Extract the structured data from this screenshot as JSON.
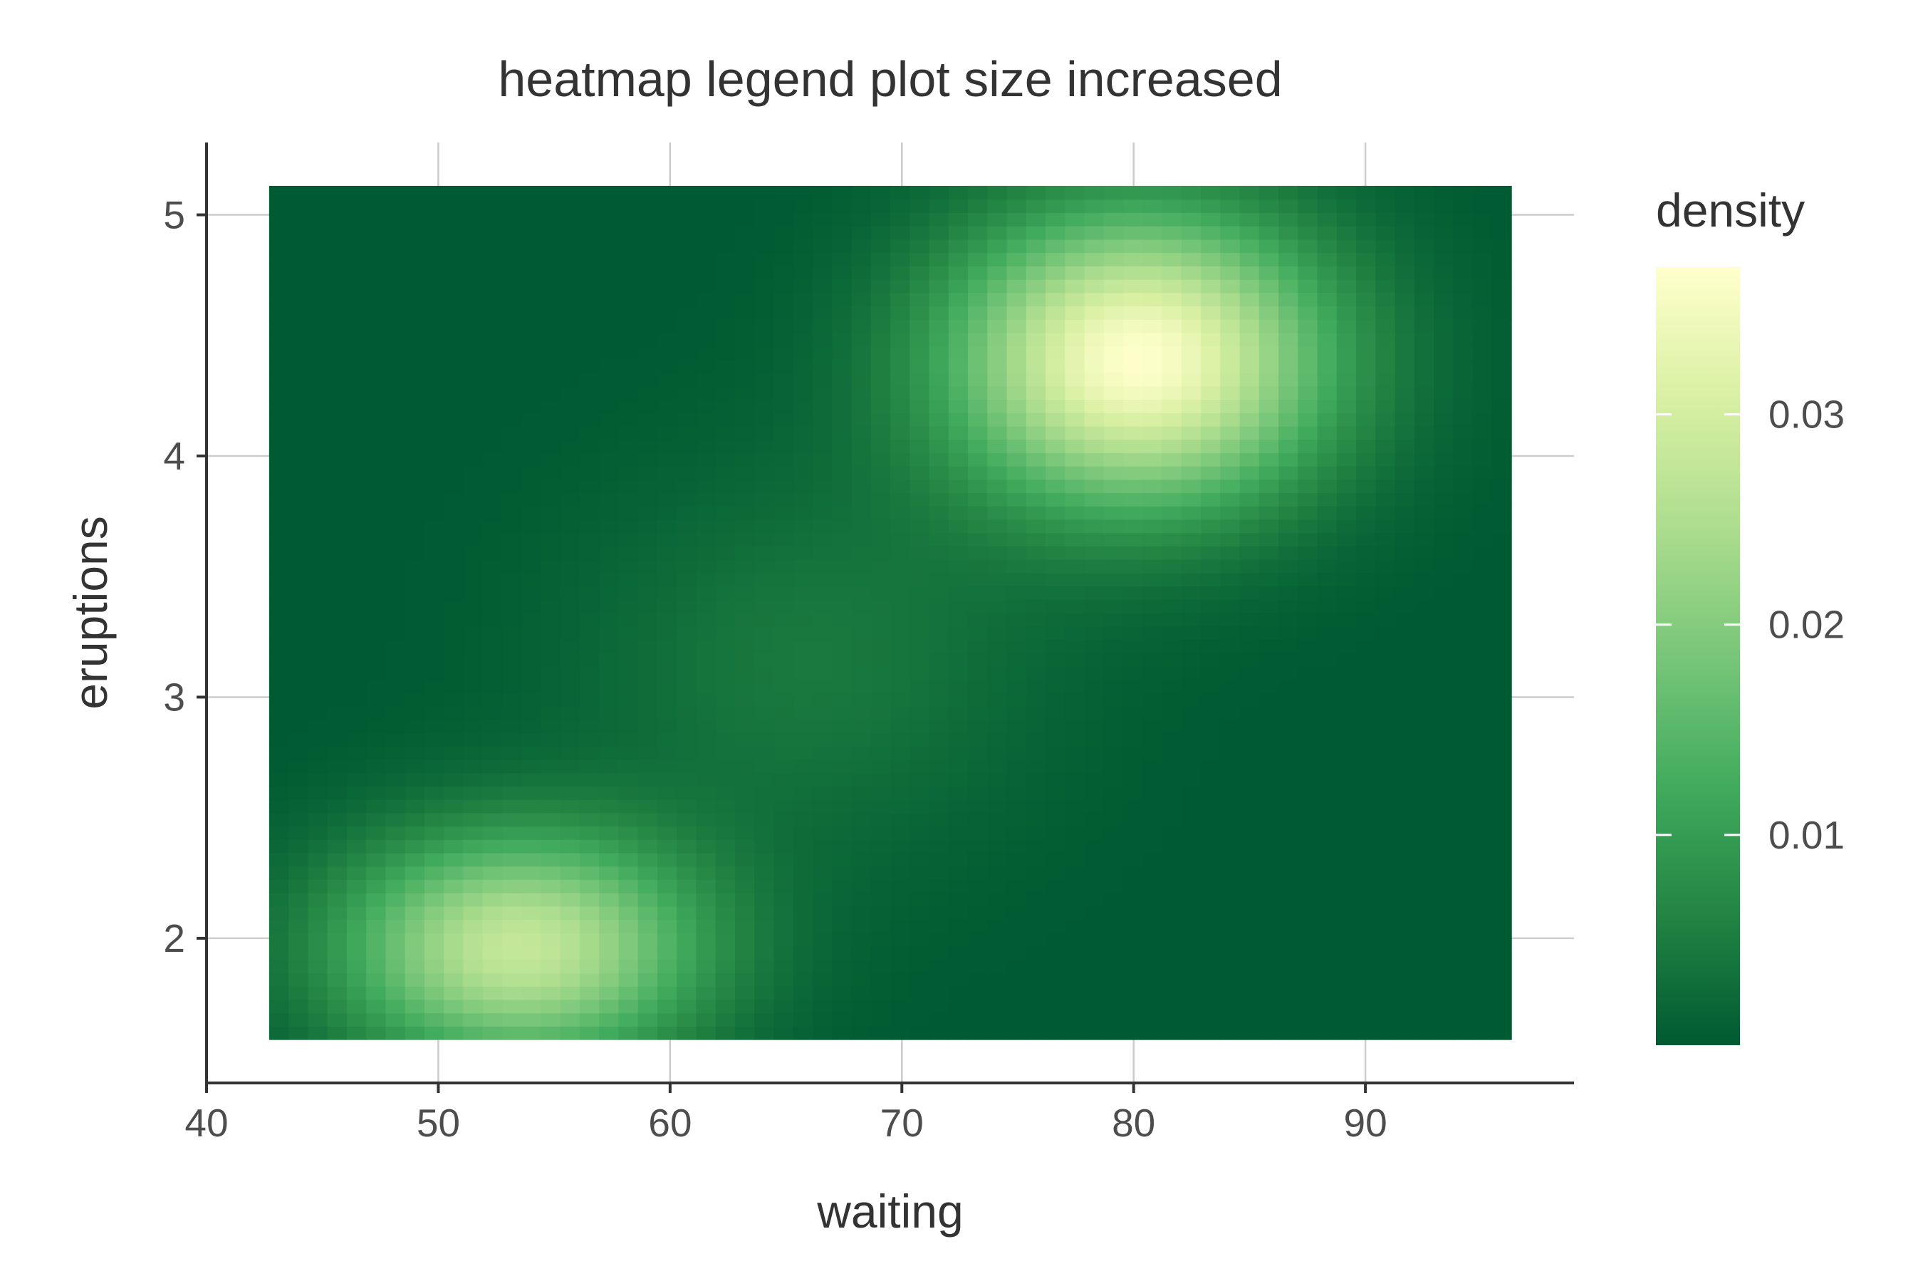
{
  "chart_data": {
    "type": "heatmap",
    "title": "heatmap legend plot size increased",
    "xlabel": "waiting",
    "ylabel": "eruptions",
    "xlim": [
      40,
      99
    ],
    "ylim": [
      1.4,
      5.3
    ],
    "x_ticks": [
      40,
      50,
      60,
      70,
      80,
      90
    ],
    "y_ticks": [
      2,
      3,
      4,
      5
    ],
    "x_tick_labels": [
      "40",
      "50",
      "60",
      "70",
      "80",
      "90"
    ],
    "y_tick_labels": [
      "2",
      "3",
      "4",
      "5"
    ],
    "grid": true,
    "grid_color": "#cccccc",
    "x_range": [
      42.7,
      96.3
    ],
    "y_range": [
      1.58,
      5.12
    ],
    "grid_resolution": [
      64,
      64
    ],
    "density_peaks": [
      {
        "waiting": 80.2,
        "eruptions": 4.4,
        "density": 0.037
      },
      {
        "waiting": 53.5,
        "eruptions": 1.96,
        "density": 0.028
      }
    ],
    "density_max": 0.037,
    "legend": {
      "title": "density",
      "position": "right",
      "breaks": [
        0.01,
        0.02,
        0.03
      ],
      "labels": [
        "0.01",
        "0.02",
        "0.03"
      ],
      "limits": [
        0.0,
        0.037
      ]
    },
    "colorscale": [
      "#005a32",
      "#238443",
      "#41ab5d",
      "#78c679",
      "#addd8e",
      "#d9f0a3",
      "#ffffcc"
    ]
  }
}
